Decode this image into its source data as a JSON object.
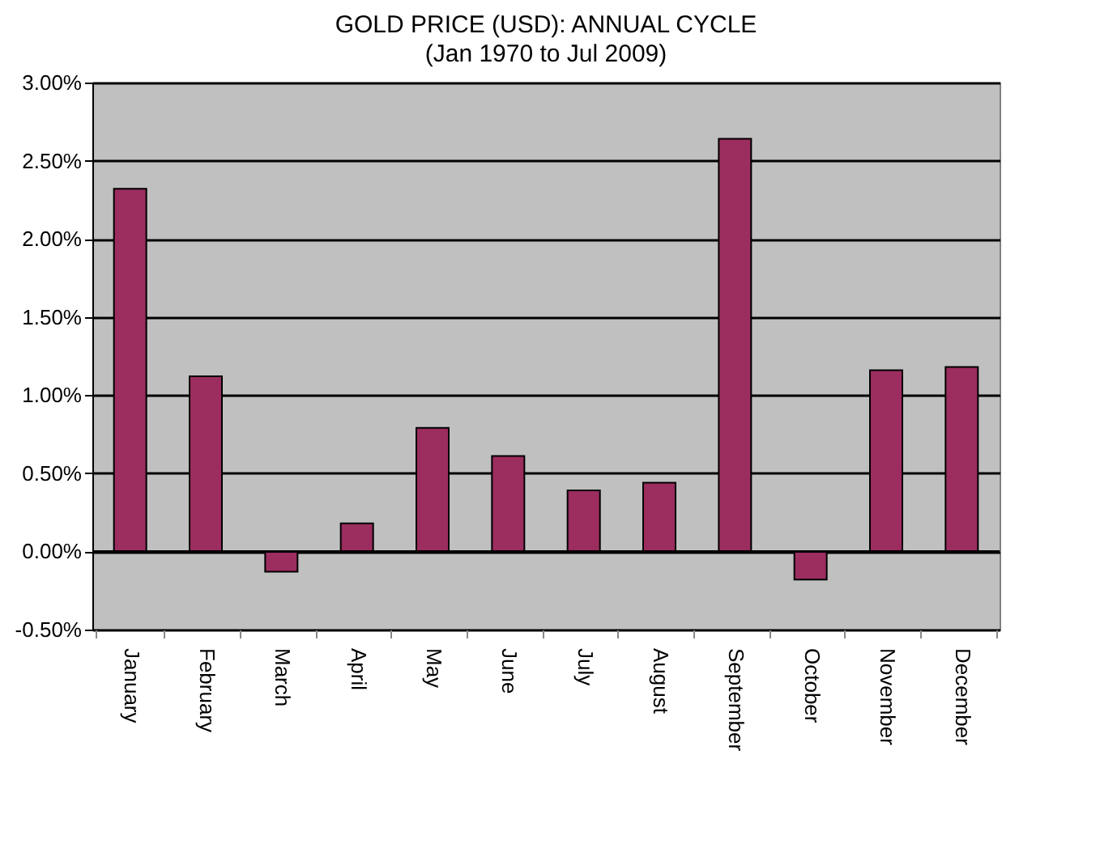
{
  "chart_data": {
    "type": "bar",
    "title": "GOLD PRICE (USD): ANNUAL CYCLE",
    "subtitle": "(Jan 1970 to Jul 2009)",
    "categories": [
      "January",
      "February",
      "March",
      "April",
      "May",
      "June",
      "July",
      "August",
      "September",
      "October",
      "November",
      "December"
    ],
    "values": [
      2.32,
      1.12,
      -0.13,
      0.18,
      0.79,
      0.61,
      0.39,
      0.44,
      2.64,
      -0.18,
      1.16,
      1.18
    ],
    "color": "#9b2d5f",
    "ylim": [
      -0.5,
      3.0
    ],
    "yticks": [
      {
        "value": -0.5,
        "label": "-0.50%"
      },
      {
        "value": 0,
        "label": "0.00%"
      },
      {
        "value": 0.5,
        "label": "0.50%"
      },
      {
        "value": 1.0,
        "label": "1.00%"
      },
      {
        "value": 1.5,
        "label": "1.50%"
      },
      {
        "value": 2.0,
        "label": "2.00%"
      },
      {
        "value": 2.5,
        "label": "2.50%"
      },
      {
        "value": 3.0,
        "label": "3.00%"
      }
    ],
    "grid": "y"
  }
}
